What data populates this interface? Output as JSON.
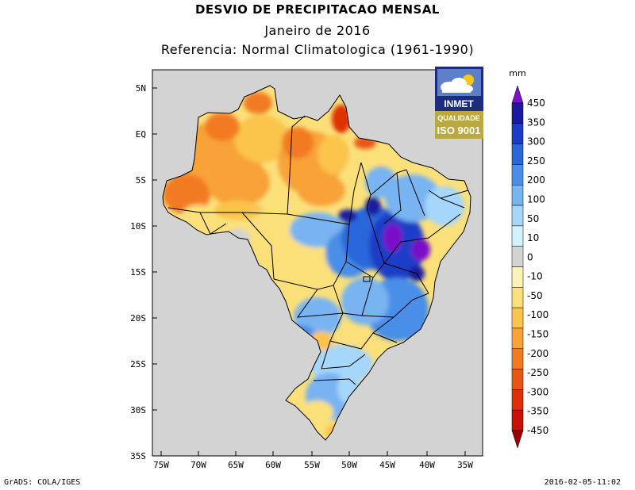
{
  "title": "DESVIO DE PRECIPITACAO MENSAL",
  "subtitle": "Janeiro de 2016",
  "reference": "Referencia: Normal Climatologica (1961-1990)",
  "map": {
    "lon_range": [
      -76,
      -31
    ],
    "lat_range": [
      -35,
      6
    ],
    "x_ticks": [
      "75W",
      "70W",
      "65W",
      "60W",
      "55W",
      "50W",
      "45W",
      "40W",
      "35W"
    ],
    "y_ticks": [
      "5N",
      "EQ",
      "5S",
      "10S",
      "15S",
      "20S",
      "25S",
      "30S",
      "35S"
    ],
    "background_color": "#d3d3d3"
  },
  "logo": {
    "name": "INMET",
    "badge_line1": "QUALIDADE",
    "badge_line2": "ISO 9001"
  },
  "legend": {
    "unit": "mm",
    "labels": [
      "450",
      "350",
      "300",
      "250",
      "200",
      "100",
      "50",
      "10",
      "0",
      "-10",
      "-50",
      "-100",
      "-150",
      "-200",
      "-250",
      "-300",
      "-350",
      "-450"
    ],
    "colors": [
      "#7a10c8",
      "#1a1aa0",
      "#1c3cc8",
      "#2a66dc",
      "#4a8ee8",
      "#78b4f2",
      "#a6d6fa",
      "#d2f2fc",
      "#d3d3d3",
      "#fbf2b6",
      "#fbe07a",
      "#fbc44c",
      "#f8a238",
      "#f27a20",
      "#e85612",
      "#de3006",
      "#c81006",
      "#9a0002"
    ]
  },
  "footer": {
    "left": "GrADS: COLA/IGES",
    "right": "2016-02-05-11:02"
  }
}
